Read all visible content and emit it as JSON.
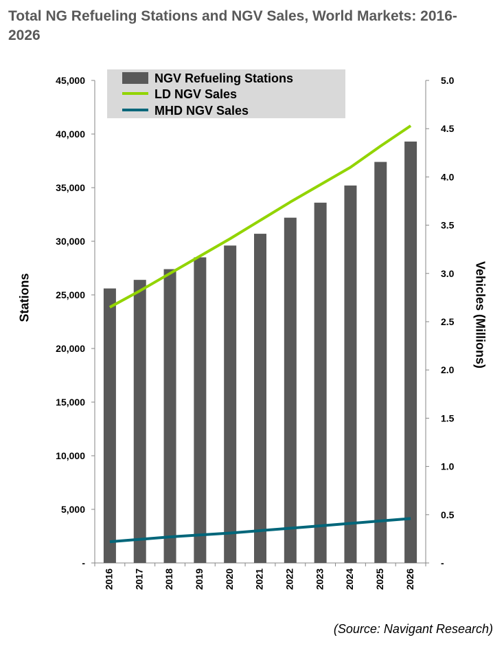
{
  "title": "Total NG Refueling Stations and NGV Sales, World Markets: 2016-2026",
  "source": "(Source: Navigant Research)",
  "colors": {
    "bars": "#595959",
    "ld": "#92d400",
    "mhd": "#00667a",
    "legend_bg": "#d9d9d9"
  },
  "chart_data": {
    "type": "bar",
    "categories": [
      "2016",
      "2017",
      "2018",
      "2019",
      "2020",
      "2021",
      "2022",
      "2023",
      "2024",
      "2025",
      "2026"
    ],
    "series": [
      {
        "name": "NGV Refueling Stations",
        "kind": "bar",
        "axis": "left",
        "values": [
          25600,
          26400,
          27400,
          28500,
          29600,
          30700,
          32200,
          33600,
          35200,
          37400,
          39300
        ]
      },
      {
        "name": "LD NGV Sales",
        "kind": "line",
        "axis": "right",
        "values": [
          2.65,
          2.82,
          3.0,
          3.18,
          3.36,
          3.55,
          3.74,
          3.92,
          4.1,
          4.32,
          4.53
        ]
      },
      {
        "name": "MHD NGV Sales",
        "kind": "line",
        "axis": "right",
        "values": [
          0.22,
          0.245,
          0.27,
          0.29,
          0.31,
          0.335,
          0.36,
          0.385,
          0.41,
          0.435,
          0.46
        ]
      }
    ],
    "ylabel": "Stations",
    "y2label": "Vehicles (Millions)",
    "ylim": [
      0,
      45000
    ],
    "y2lim": [
      0,
      5.0
    ],
    "yticks": [
      "-",
      "5,000",
      "10,000",
      "15,000",
      "20,000",
      "25,000",
      "30,000",
      "35,000",
      "40,000",
      "45,000"
    ],
    "y2ticks": [
      "-",
      "0.5",
      "1.0",
      "1.5",
      "2.0",
      "2.5",
      "3.0",
      "3.5",
      "4.0",
      "4.5",
      "5.0"
    ],
    "legend": "top-left",
    "grid": false
  }
}
